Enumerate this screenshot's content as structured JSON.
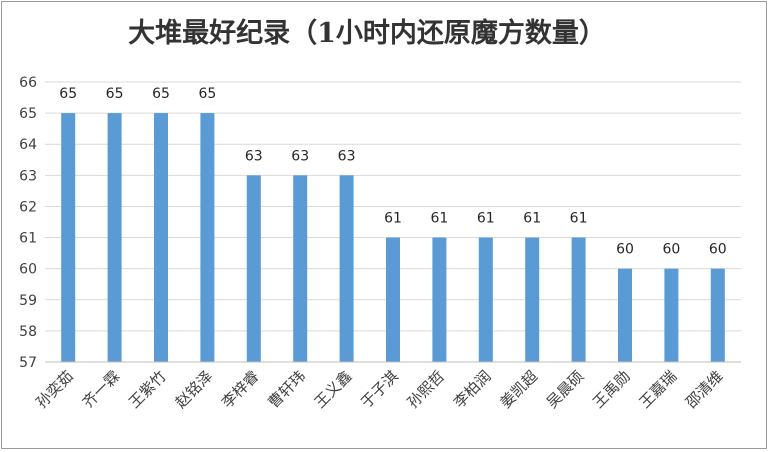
{
  "chart_data": {
    "type": "bar",
    "title": "大堆最好纪录（1小时内还原魔方数量）",
    "xlabel": "",
    "ylabel": "",
    "ylim": [
      57,
      66
    ],
    "yticks": [
      57,
      58,
      59,
      60,
      61,
      62,
      63,
      64,
      65,
      66
    ],
    "grid": true,
    "legend": "none",
    "bar_color": "#5b9bd5",
    "categories": [
      "孙奕茹",
      "齐一霖",
      "王紫竹",
      "赵铭泽",
      "李梓睿",
      "曹轩玮",
      "王义鑫",
      "于子淇",
      "孙熙哲",
      "李柏润",
      "姜凯超",
      "吴晨硕",
      "王禹勋",
      "王嘉瑞",
      "邵清维"
    ],
    "values": [
      65,
      65,
      65,
      65,
      63,
      63,
      63,
      61,
      61,
      61,
      61,
      61,
      60,
      60,
      60
    ]
  }
}
